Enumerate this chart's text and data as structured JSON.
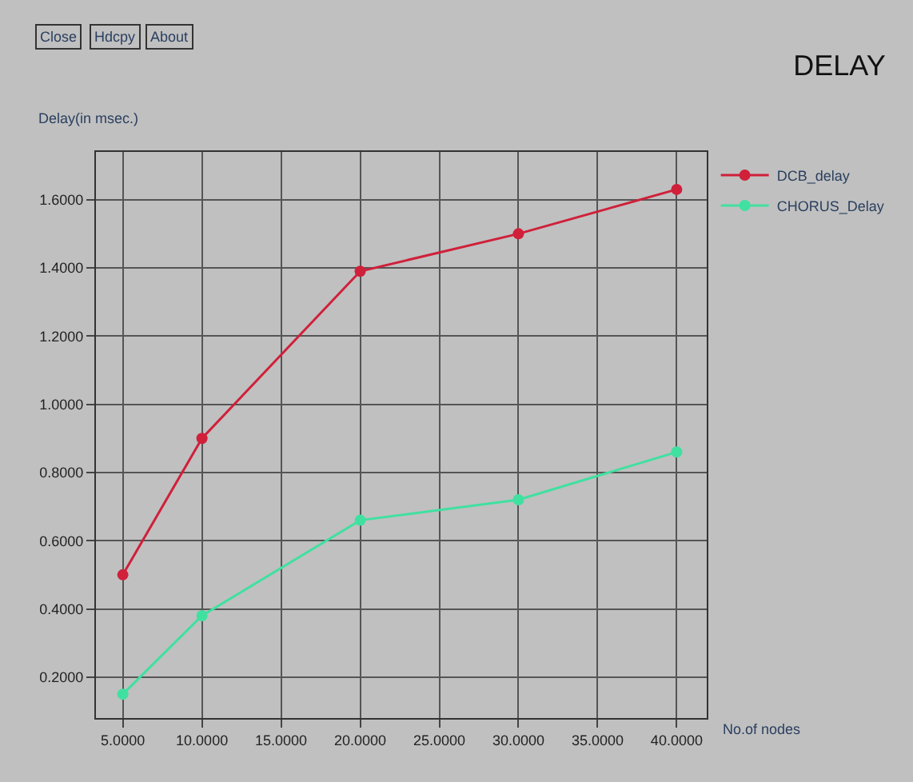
{
  "chart_data": {
    "type": "line",
    "title": "DELAY",
    "ylabel": "Delay(in msec.)",
    "xlabel": "No.of nodes",
    "annotations": [
      "Close",
      "Hdcpy",
      "About"
    ],
    "x": [
      5,
      10,
      20,
      30,
      40
    ],
    "series": [
      {
        "name": "DCB_delay",
        "color": "#d0203a",
        "values": [
          0.5,
          0.9,
          1.39,
          1.5,
          1.63
        ]
      },
      {
        "name": "CHORUS_Delay",
        "color": "#40e0a0",
        "values": [
          0.15,
          0.38,
          0.66,
          0.72,
          0.86
        ]
      }
    ],
    "xlim": [
      3.3,
      41.9
    ],
    "xticks": [
      {
        "value": 5,
        "label": "5.0000"
      },
      {
        "value": 10,
        "label": "10.0000"
      },
      {
        "value": 15,
        "label": "15.0000"
      },
      {
        "value": 20,
        "label": "20.0000"
      },
      {
        "value": 25,
        "label": "25.0000"
      },
      {
        "value": 30,
        "label": "30.0000"
      },
      {
        "value": 35,
        "label": "35.0000"
      },
      {
        "value": 40,
        "label": "40.0000"
      }
    ],
    "ylim": [
      0.08,
      1.74
    ],
    "yticks": [
      {
        "value": 0.2,
        "label": "0.2000"
      },
      {
        "value": 0.4,
        "label": "0.4000"
      },
      {
        "value": 0.6,
        "label": "0.6000"
      },
      {
        "value": 0.8,
        "label": "0.8000"
      },
      {
        "value": 1.0,
        "label": "1.0000"
      },
      {
        "value": 1.2,
        "label": "1.2000"
      },
      {
        "value": 1.4,
        "label": "1.4000"
      },
      {
        "value": 1.6,
        "label": "1.6000"
      }
    ],
    "grid": true,
    "legend": "top right",
    "marker": "circle",
    "line_style": "solid"
  }
}
